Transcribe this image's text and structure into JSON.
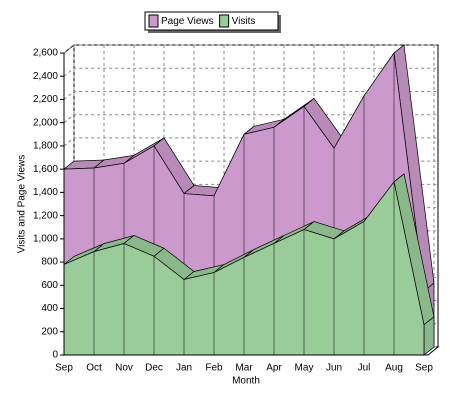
{
  "chart_data": {
    "type": "area3d",
    "x_label": "Month",
    "y_label": "Visits and Page Views",
    "categories": [
      "Sep",
      "Oct",
      "Nov",
      "Dec",
      "Jan",
      "Feb",
      "Mar",
      "Apr",
      "May",
      "Jun",
      "Jul",
      "Aug",
      "Sep"
    ],
    "series": [
      {
        "name": "Page Views",
        "color": "#cc99cc",
        "values": [
          1600,
          1610,
          1650,
          1800,
          1390,
          1370,
          1900,
          1960,
          2140,
          1780,
          2230,
          2600,
          550
        ]
      },
      {
        "name": "Visits",
        "color": "#99cc99",
        "values": [
          780,
          890,
          960,
          850,
          650,
          710,
          840,
          960,
          1080,
          1000,
          1150,
          1490,
          260
        ]
      }
    ],
    "ylim": [
      0,
      2600
    ],
    "yticks": [
      0,
      200,
      400,
      600,
      800,
      {
        "value": 1000,
        "label": "1,000"
      },
      {
        "value": 1200,
        "label": "1,200"
      },
      {
        "value": 1400,
        "label": "1,400"
      },
      {
        "value": 1600,
        "label": "1,600"
      },
      {
        "value": 1800,
        "label": "1,800"
      },
      {
        "value": 2000,
        "label": "2,000"
      },
      {
        "value": 2200,
        "label": "2,200"
      },
      {
        "value": 2400,
        "label": "2,400"
      },
      {
        "value": 2600,
        "label": "2,600"
      }
    ],
    "grid": true,
    "legend": "top"
  }
}
